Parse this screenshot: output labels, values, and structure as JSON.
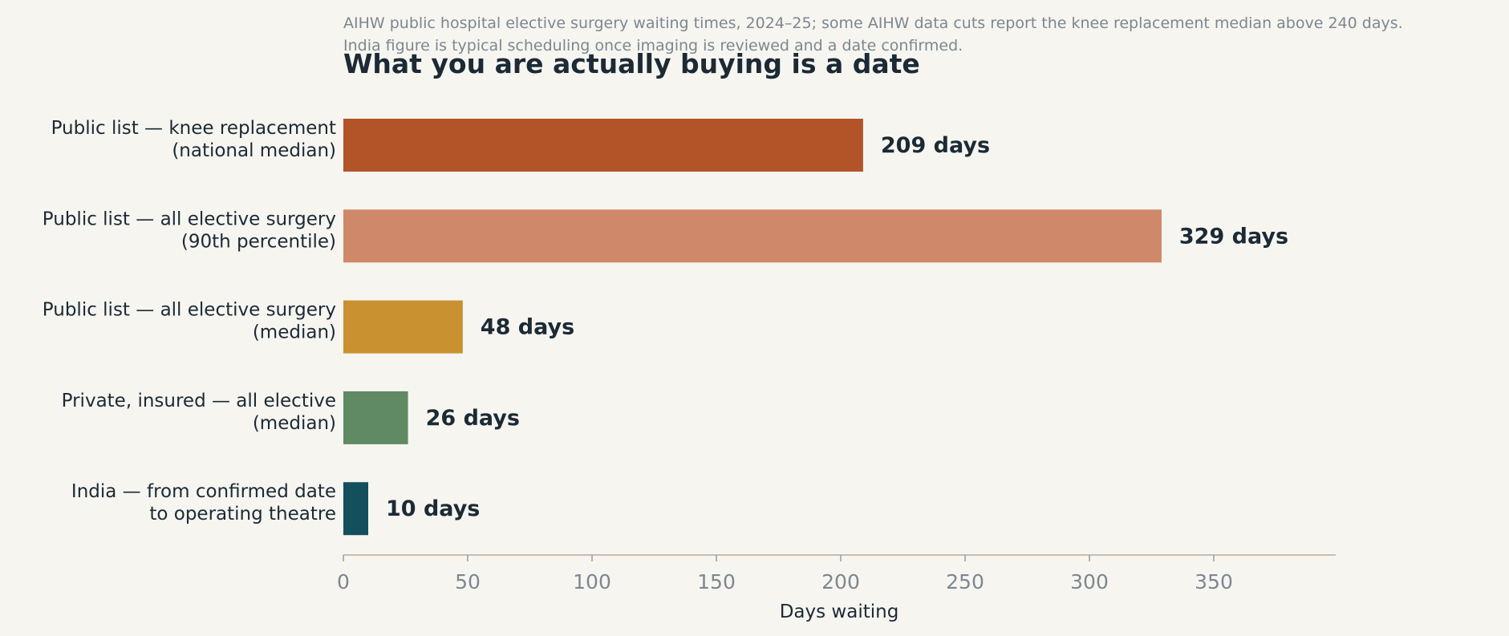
{
  "chart_data": {
    "type": "bar",
    "orientation": "horizontal",
    "subtitle_lines": [
      "AIHW public hospital elective surgery waiting times, 2024–25; some AIHW data cuts report the knee replacement median above 240 days.",
      "India figure is typical scheduling once imaging is reviewed and a date confirmed."
    ],
    "title": "What you are actually buying is a date",
    "xlabel": "Days waiting",
    "ylabel": "",
    "xlim": [
      0,
      395
    ],
    "xticks": [
      0,
      50,
      100,
      150,
      200,
      250,
      300,
      350
    ],
    "grid": false,
    "categories": [
      [
        "Public list — knee replacement",
        "(national median)"
      ],
      [
        "Public list — all elective surgery",
        "(90th percentile)"
      ],
      [
        "Public list — all elective surgery",
        "(median)"
      ],
      [
        "Private, insured — all elective",
        "(median)"
      ],
      [
        "India — from confirmed date",
        "to operating theatre"
      ]
    ],
    "values": [
      209,
      329,
      48,
      26,
      10
    ],
    "value_labels": [
      "209 days",
      "329 days",
      "48 days",
      "26 days",
      "10 days"
    ],
    "colors": [
      "#b35428",
      "#cf8869",
      "#c9912f",
      "#608a63",
      "#134f5c"
    ]
  }
}
